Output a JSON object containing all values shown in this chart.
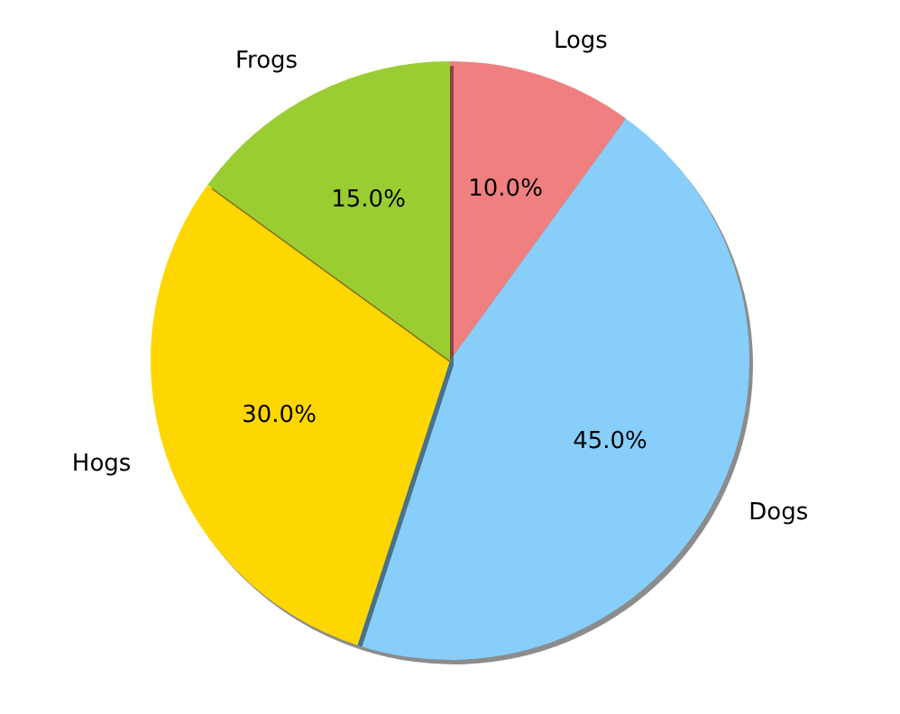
{
  "chart_data": {
    "type": "pie",
    "categories": [
      "Frogs",
      "Hogs",
      "Dogs",
      "Logs"
    ],
    "values": [
      15,
      30,
      45,
      10
    ],
    "colors": [
      "#9acd32",
      "#ffd700",
      "#87cefa",
      "#f08080"
    ],
    "value_labels": [
      "15.0%",
      "30.0%",
      "45.0%",
      "10.0%"
    ],
    "legend": false
  }
}
